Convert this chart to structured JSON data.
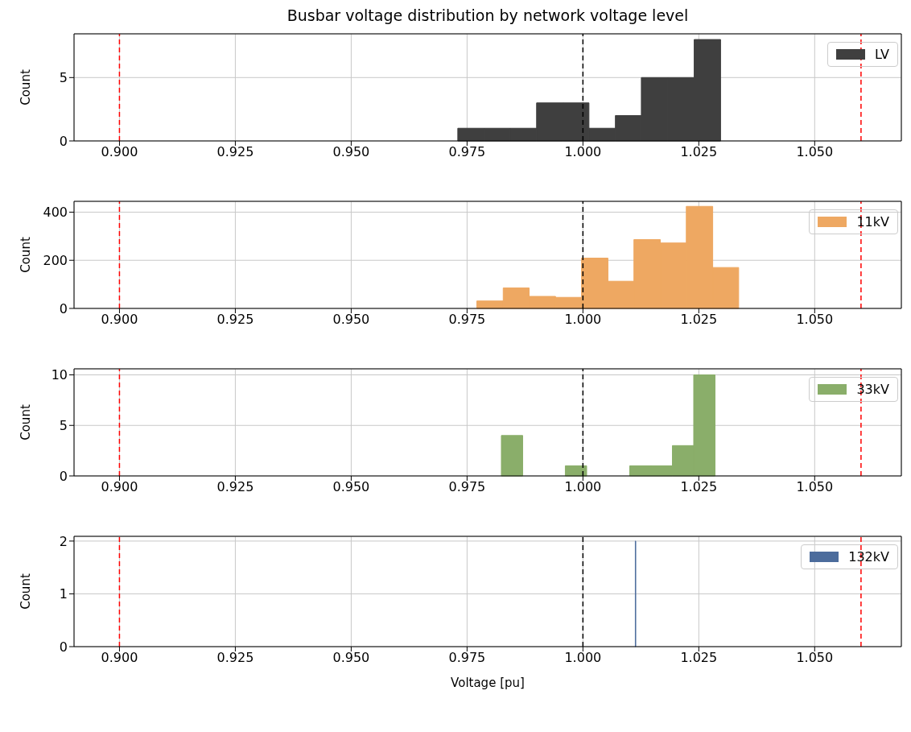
{
  "chart_data": [
    {
      "type": "histogram",
      "title": "Busbar voltage distribution by network voltage level",
      "ylabel": "Count",
      "bins": [
        0.973,
        0.9787,
        0.9843,
        0.99,
        0.9957,
        1.0013,
        1.007,
        1.0126,
        1.0183,
        1.024,
        1.0297
      ],
      "series": [
        {
          "name": "LV",
          "color": "#3f3f3f",
          "values": [
            1,
            1,
            1,
            3,
            3,
            1,
            2,
            5,
            5,
            8
          ]
        }
      ],
      "xlim": [
        0.8902,
        1.0687
      ],
      "ylim": [
        0,
        8.45
      ],
      "xticks": [
        {
          "value": 0.9,
          "label": "0.900"
        },
        {
          "value": 0.925,
          "label": "0.925"
        },
        {
          "value": 0.95,
          "label": "0.950"
        },
        {
          "value": 0.975,
          "label": "0.975"
        },
        {
          "value": 1.0,
          "label": "1.000"
        },
        {
          "value": 1.025,
          "label": "1.025"
        },
        {
          "value": 1.05,
          "label": "1.050"
        }
      ],
      "yticks": [
        0,
        5
      ],
      "grid": true,
      "legend": "top right",
      "ref_lines": [
        {
          "axis": "x",
          "value": 0.9,
          "color": "#ff0000",
          "line_style": "dashed"
        },
        {
          "axis": "x",
          "value": 1.06,
          "color": "#ff0000",
          "line_style": "dashed"
        },
        {
          "axis": "x",
          "value": 1.0,
          "color": "#000000",
          "line_style": "dashed"
        }
      ]
    },
    {
      "type": "histogram",
      "ylabel": "Count",
      "bins": [
        0.9771,
        0.9828,
        0.9884,
        0.9941,
        0.9997,
        1.0054,
        1.011,
        1.0167,
        1.0223,
        1.028,
        1.0336
      ],
      "series": [
        {
          "name": "11kV",
          "color": "#eea862",
          "values": [
            31,
            85,
            50,
            46,
            209,
            113,
            286,
            272,
            424,
            170
          ]
        }
      ],
      "xlim": [
        0.8902,
        1.0687
      ],
      "ylim": [
        0,
        445
      ],
      "xticks": [
        {
          "value": 0.9,
          "label": "0.900"
        },
        {
          "value": 0.925,
          "label": "0.925"
        },
        {
          "value": 0.95,
          "label": "0.950"
        },
        {
          "value": 0.975,
          "label": "0.975"
        },
        {
          "value": 1.0,
          "label": "1.000"
        },
        {
          "value": 1.025,
          "label": "1.025"
        },
        {
          "value": 1.05,
          "label": "1.050"
        }
      ],
      "yticks": [
        0,
        200,
        400
      ],
      "grid": true,
      "legend": "top right",
      "ref_lines": [
        {
          "axis": "x",
          "value": 0.9,
          "color": "#ff0000",
          "line_style": "dashed"
        },
        {
          "axis": "x",
          "value": 1.06,
          "color": "#ff0000",
          "line_style": "dashed"
        },
        {
          "axis": "x",
          "value": 1.0,
          "color": "#000000",
          "line_style": "dashed"
        }
      ]
    },
    {
      "type": "histogram",
      "ylabel": "Count",
      "bins": [
        0.9824,
        0.987,
        0.9962,
        1.0008,
        1.0101,
        1.0147,
        1.0193,
        1.0239,
        1.0285
      ],
      "series": [
        {
          "name": "33kV",
          "color": "#8aae6a",
          "values": [
            4,
            0,
            1,
            0,
            1,
            1,
            3,
            10
          ]
        }
      ],
      "xlim": [
        0.8902,
        1.0687
      ],
      "ylim": [
        0,
        10.6
      ],
      "xticks": [
        {
          "value": 0.9,
          "label": "0.900"
        },
        {
          "value": 0.925,
          "label": "0.925"
        },
        {
          "value": 0.95,
          "label": "0.950"
        },
        {
          "value": 0.975,
          "label": "0.975"
        },
        {
          "value": 1.0,
          "label": "1.000"
        },
        {
          "value": 1.025,
          "label": "1.025"
        },
        {
          "value": 1.05,
          "label": "1.050"
        }
      ],
      "yticks": [
        0,
        5,
        10
      ],
      "grid": true,
      "legend": "top right",
      "ref_lines": [
        {
          "axis": "x",
          "value": 0.9,
          "color": "#ff0000",
          "line_style": "dashed"
        },
        {
          "axis": "x",
          "value": 1.06,
          "color": "#ff0000",
          "line_style": "dashed"
        },
        {
          "axis": "x",
          "value": 1.0,
          "color": "#000000",
          "line_style": "dashed"
        }
      ]
    },
    {
      "type": "histogram",
      "xlabel": "Voltage [pu]",
      "ylabel": "Count",
      "bins": [
        1.0113,
        1.0114
      ],
      "series": [
        {
          "name": "132kV",
          "color": "#4c6c9c",
          "values": [
            2
          ]
        }
      ],
      "xlim": [
        0.8902,
        1.0687
      ],
      "ylim": [
        0,
        2.09
      ],
      "xticks": [
        {
          "value": 0.9,
          "label": "0.900"
        },
        {
          "value": 0.925,
          "label": "0.925"
        },
        {
          "value": 0.95,
          "label": "0.950"
        },
        {
          "value": 0.975,
          "label": "0.975"
        },
        {
          "value": 1.0,
          "label": "1.000"
        },
        {
          "value": 1.025,
          "label": "1.025"
        },
        {
          "value": 1.05,
          "label": "1.050"
        }
      ],
      "yticks": [
        0,
        1,
        2
      ],
      "grid": true,
      "legend": "top right",
      "ref_lines": [
        {
          "axis": "x",
          "value": 0.9,
          "color": "#ff0000",
          "line_style": "dashed"
        },
        {
          "axis": "x",
          "value": 1.06,
          "color": "#ff0000",
          "line_style": "dashed"
        },
        {
          "axis": "x",
          "value": 1.0,
          "color": "#000000",
          "line_style": "dashed"
        }
      ]
    }
  ]
}
